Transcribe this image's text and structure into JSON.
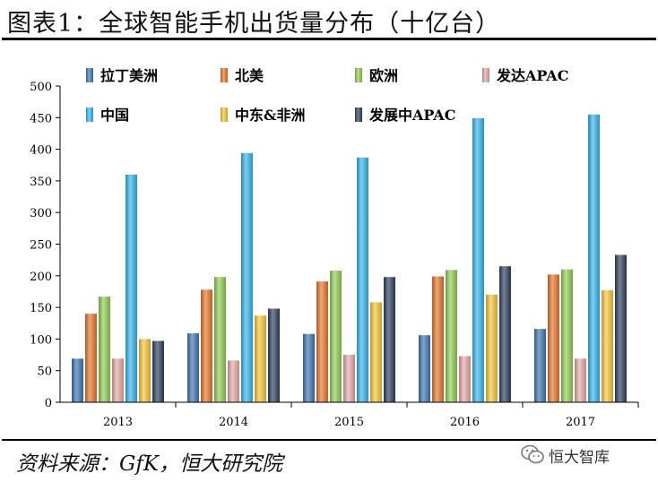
{
  "header": {
    "title": "图表1：全球智能手机出货量分布（十亿台）"
  },
  "footer": {
    "source": "资料来源：GfK，恒大研究院",
    "watermark": "恒大智库"
  },
  "chart_data": {
    "type": "bar",
    "title": "图表1：全球智能手机出货量分布（十亿台）",
    "xlabel": "",
    "ylabel": "",
    "ylim": [
      0,
      500
    ],
    "yticks": [
      0,
      50,
      100,
      150,
      200,
      250,
      300,
      350,
      400,
      450,
      500
    ],
    "legend_position": "top",
    "categories": [
      "2013",
      "2014",
      "2015",
      "2016",
      "2017"
    ],
    "series": [
      {
        "name": "拉丁美洲",
        "color": "#3E75B0",
        "values": [
          69,
          109,
          108,
          106,
          116
        ]
      },
      {
        "name": "北美",
        "color": "#E8762D",
        "values": [
          140,
          178,
          191,
          199,
          202
        ]
      },
      {
        "name": "欧洲",
        "color": "#92CC55",
        "values": [
          167,
          198,
          208,
          209,
          210
        ]
      },
      {
        "name": "发达APAC",
        "color": "#E3ABA8",
        "values": [
          69,
          66,
          75,
          73,
          69
        ]
      },
      {
        "name": "中国",
        "color": "#36B5EB",
        "values": [
          360,
          394,
          387,
          449,
          455
        ]
      },
      {
        "name": "中东&非洲",
        "color": "#F6C83A",
        "values": [
          100,
          137,
          158,
          170,
          177
        ]
      },
      {
        "name": "发展中APAC",
        "color": "#2F3F5F",
        "values": [
          97,
          148,
          198,
          215,
          233
        ]
      }
    ]
  }
}
